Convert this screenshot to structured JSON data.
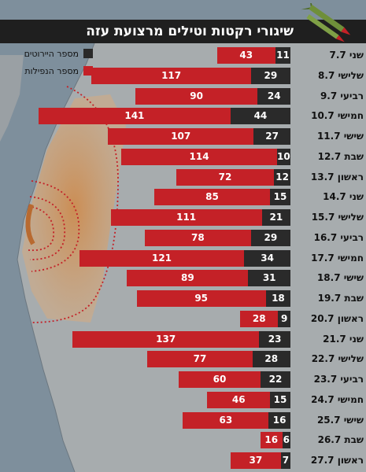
{
  "title": "שיגורי רקטות וטילים מרצועת עזה",
  "legend": {
    "interceptions": "מספר היירוטים",
    "impacts": "מספר הנפילות"
  },
  "colors": {
    "interceptions": "#2a2a2a",
    "impacts": "#c42127",
    "header": "#1f1f1f",
    "background": "#8b959d",
    "sea": "#6f8a9d",
    "land": "#a9aeb1",
    "range_zone": "#d6aa7e"
  },
  "chart_data": {
    "type": "bar",
    "orientation": "horizontal",
    "stacked": true,
    "categories": [
      "שני 7.7",
      "שלישי 8.7",
      "רביעי 9.7",
      "חמישי 10.7",
      "שישי 11.7",
      "שבת 12.7",
      "ראשון 13.7",
      "שני 14.7",
      "שלישי 15.7",
      "רביעי 16.7",
      "חמישי 17.7",
      "שישי 18.7",
      "שבת 19.7",
      "ראשון 20.7",
      "שני 21.7",
      "שלישי 22.7",
      "רביעי 23.7",
      "חמישי 24.7",
      "שישי 25.7",
      "שבת 26.7",
      "ראשון 27.7"
    ],
    "series": [
      {
        "name": "מספר היירוטים",
        "values": [
          11,
          29,
          24,
          44,
          27,
          10,
          12,
          15,
          21,
          29,
          34,
          31,
          18,
          9,
          23,
          28,
          22,
          15,
          16,
          6,
          7
        ]
      },
      {
        "name": "מספר הנפילות",
        "values": [
          43,
          117,
          90,
          141,
          107,
          114,
          72,
          85,
          111,
          78,
          121,
          89,
          95,
          28,
          137,
          77,
          60,
          46,
          63,
          16,
          37
        ]
      }
    ],
    "legend_position": "top-left"
  }
}
